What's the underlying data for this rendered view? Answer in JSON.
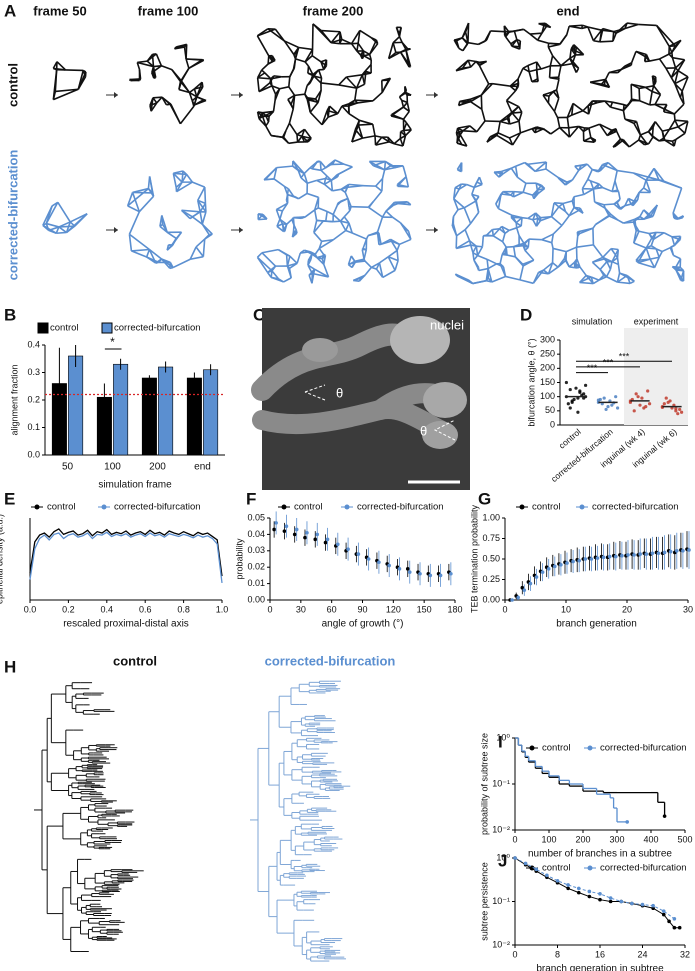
{
  "panel_A": {
    "label": "A",
    "columns": [
      "frame 50",
      "frame 100",
      "frame 200",
      "end"
    ],
    "rows": [
      "control",
      "corrected-bifurcation"
    ]
  },
  "panel_C": {
    "label": "C",
    "caption": "nuclei",
    "angle_symbol": "θ"
  },
  "panel_H": {
    "label": "H",
    "titles": [
      "control",
      "corrected-bifurcation"
    ]
  },
  "chart_data": [
    {
      "panel": "B",
      "type": "bar",
      "categories": [
        "50",
        "100",
        "200",
        "end"
      ],
      "series": [
        {
          "name": "control",
          "color": "#000000",
          "values": [
            0.26,
            0.21,
            0.28,
            0.28
          ],
          "errors": [
            0.13,
            0.05,
            0.01,
            0.02
          ]
        },
        {
          "name": "corrected-bifurcation",
          "color": "#5b8fd0",
          "values": [
            0.36,
            0.33,
            0.32,
            0.31
          ],
          "errors": [
            0.04,
            0.02,
            0.02,
            0.02
          ]
        }
      ],
      "reference_line": 0.22,
      "reference_color": "#d62728",
      "annotation": "*",
      "ylim": [
        0,
        0.4
      ],
      "yticks": [
        {
          "value": 0,
          "label": "0.0"
        },
        0.1,
        0.2,
        0.3,
        0.4
      ],
      "xlabel": "simulation frame",
      "ylabel": "alignment fraction"
    },
    {
      "panel": "D",
      "type": "strip",
      "categories": [
        "control",
        "corrected-bifurcation",
        "inguinal (wk 4)",
        "inguinal (wk 6)"
      ],
      "colors": [
        "#000000",
        "#4a7fc1",
        "#c0392b",
        "#c0392b"
      ],
      "values": [
        [
          100,
          120,
          85,
          140,
          95,
          60,
          110,
          130,
          75,
          105,
          90,
          150,
          115,
          80,
          100,
          45,
          125,
          95
        ],
        [
          80,
          70,
          95,
          60,
          85,
          75,
          100,
          65,
          90,
          78,
          55,
          88
        ],
        [
          85,
          60,
          110,
          75,
          95,
          50,
          120,
          70,
          90,
          65,
          100,
          80
        ],
        [
          65,
          50,
          80,
          45,
          70,
          95,
          55,
          60,
          75,
          40,
          85,
          62,
          58
        ]
      ],
      "means": [
        100,
        80,
        85,
        65
      ],
      "groups": [
        "simulation",
        "experiment"
      ],
      "annotations": [
        "***",
        "***",
        "***"
      ],
      "ylim": [
        0,
        300
      ],
      "yticks": [
        0,
        50,
        100,
        150,
        200,
        250,
        300
      ],
      "ylabel": "bifurcation angle, θ (°)"
    },
    {
      "panel": "E",
      "type": "line",
      "x": [
        0,
        0.025,
        0.05,
        0.075,
        0.1,
        0.125,
        0.15,
        0.175,
        0.2,
        0.225,
        0.25,
        0.275,
        0.3,
        0.325,
        0.35,
        0.375,
        0.4,
        0.425,
        0.45,
        0.475,
        0.5,
        0.525,
        0.55,
        0.575,
        0.6,
        0.625,
        0.65,
        0.675,
        0.7,
        0.725,
        0.75,
        0.775,
        0.8,
        0.825,
        0.85,
        0.875,
        0.9,
        0.925,
        0.95,
        0.975,
        1
      ],
      "series": [
        {
          "name": "control",
          "color": "#000000",
          "values": [
            40,
            85,
            95,
            98,
            92,
            100,
            104,
            96,
            99,
            101,
            95,
            97,
            102,
            94,
            100,
            98,
            103,
            96,
            99,
            97,
            101,
            95,
            98,
            100,
            96,
            102,
            97,
            99,
            95,
            101,
            98,
            96,
            100,
            97,
            94,
            99,
            96,
            98,
            93,
            88,
            35
          ]
        },
        {
          "name": "corrected-bifurcation",
          "color": "#5b8fd0",
          "values": [
            30,
            75,
            90,
            95,
            88,
            96,
            98,
            90,
            95,
            97,
            92,
            94,
            98,
            90,
            96,
            95,
            99,
            93,
            96,
            94,
            97,
            92,
            95,
            97,
            93,
            98,
            94,
            96,
            92,
            97,
            95,
            93,
            96,
            94,
            91,
            95,
            92,
            94,
            90,
            82,
            25
          ]
        }
      ],
      "xlim": [
        0,
        1
      ],
      "xticks": [
        {
          "value": 0,
          "label": "0.0"
        },
        0.2,
        0.4,
        0.6,
        0.8,
        {
          "value": 1,
          "label": "1.0"
        }
      ],
      "ylim": [
        0,
        120
      ],
      "xlabel": "rescaled proximal-distal axis",
      "ylabel": "epithelial density (a.u.)"
    },
    {
      "panel": "F",
      "type": "errorbar",
      "x": [
        5,
        15,
        25,
        35,
        45,
        55,
        65,
        75,
        85,
        95,
        105,
        115,
        125,
        135,
        145,
        155,
        165,
        175
      ],
      "series": [
        {
          "name": "control",
          "color": "#000000",
          "values": [
            0.043,
            0.042,
            0.04,
            0.038,
            0.037,
            0.035,
            0.033,
            0.03,
            0.028,
            0.026,
            0.024,
            0.022,
            0.02,
            0.019,
            0.017,
            0.016,
            0.016,
            0.017
          ],
          "errors": [
            0.005,
            0.005,
            0.005,
            0.005,
            0.005,
            0.005,
            0.005,
            0.005,
            0.005,
            0.005,
            0.005,
            0.005,
            0.005,
            0.005,
            0.005,
            0.005,
            0.005,
            0.005
          ]
        },
        {
          "name": "corrected-bifurcation",
          "color": "#5b8fd0",
          "values": [
            0.047,
            0.045,
            0.043,
            0.041,
            0.04,
            0.037,
            0.034,
            0.031,
            0.028,
            0.025,
            0.023,
            0.021,
            0.019,
            0.017,
            0.016,
            0.015,
            0.015,
            0.016
          ],
          "errors": [
            0.007,
            0.007,
            0.007,
            0.007,
            0.007,
            0.007,
            0.007,
            0.007,
            0.007,
            0.007,
            0.007,
            0.007,
            0.007,
            0.007,
            0.007,
            0.007,
            0.007,
            0.007
          ]
        }
      ],
      "xlim": [
        0,
        180
      ],
      "xticks": [
        0,
        30,
        60,
        90,
        120,
        150,
        180
      ],
      "ylim": [
        0,
        0.05
      ],
      "yticks": [
        {
          "value": 0,
          "label": "0.00"
        },
        {
          "value": 0.01,
          "label": "0.01"
        },
        {
          "value": 0.02,
          "label": "0.02"
        },
        {
          "value": 0.03,
          "label": "0.03"
        },
        {
          "value": 0.04,
          "label": "0.04"
        },
        {
          "value": 0.05,
          "label": "0.05"
        }
      ],
      "xlabel": "angle of growth (°)",
      "ylabel": "probability"
    },
    {
      "panel": "G",
      "type": "errorbar",
      "x": [
        1,
        2,
        3,
        4,
        5,
        6,
        7,
        8,
        9,
        10,
        11,
        12,
        13,
        14,
        15,
        16,
        17,
        18,
        19,
        20,
        21,
        22,
        23,
        24,
        25,
        26,
        27,
        28,
        29,
        30
      ],
      "series": [
        {
          "name": "control",
          "color": "#000000",
          "values": [
            0,
            0.05,
            0.15,
            0.22,
            0.3,
            0.35,
            0.4,
            0.42,
            0.44,
            0.46,
            0.48,
            0.49,
            0.5,
            0.51,
            0.52,
            0.53,
            0.52,
            0.54,
            0.55,
            0.54,
            0.56,
            0.55,
            0.57,
            0.56,
            0.58,
            0.57,
            0.6,
            0.58,
            0.61,
            0.62
          ],
          "errors": [
            0,
            0.04,
            0.08,
            0.1,
            0.11,
            0.12,
            0.12,
            0.13,
            0.13,
            0.14,
            0.14,
            0.15,
            0.15,
            0.15,
            0.16,
            0.16,
            0.16,
            0.17,
            0.17,
            0.17,
            0.18,
            0.18,
            0.18,
            0.19,
            0.19,
            0.2,
            0.2,
            0.21,
            0.21,
            0.22
          ]
        },
        {
          "name": "corrected-bifurcation",
          "color": "#5b8fd0",
          "values": [
            0,
            0.03,
            0.12,
            0.2,
            0.28,
            0.34,
            0.38,
            0.41,
            0.43,
            0.45,
            0.47,
            0.48,
            0.5,
            0.5,
            0.51,
            0.52,
            0.53,
            0.53,
            0.54,
            0.55,
            0.55,
            0.56,
            0.56,
            0.57,
            0.57,
            0.58,
            0.59,
            0.6,
            0.6,
            0.61
          ],
          "errors": [
            0,
            0.03,
            0.07,
            0.09,
            0.1,
            0.11,
            0.12,
            0.12,
            0.13,
            0.13,
            0.14,
            0.14,
            0.15,
            0.15,
            0.15,
            0.16,
            0.16,
            0.17,
            0.17,
            0.18,
            0.18,
            0.19,
            0.19,
            0.2,
            0.2,
            0.21,
            0.21,
            0.22,
            0.22,
            0.23
          ]
        }
      ],
      "xlim": [
        0,
        30
      ],
      "xticks": [
        0,
        10,
        20,
        30
      ],
      "ylim": [
        0,
        1
      ],
      "yticks": [
        {
          "value": 0,
          "label": "0.00"
        },
        {
          "value": 0.25,
          "label": "0.25"
        },
        {
          "value": 0.5,
          "label": "0.50"
        },
        {
          "value": 0.75,
          "label": "0.75"
        },
        {
          "value": 1,
          "label": "1.00"
        }
      ],
      "xlabel": "branch generation",
      "ylabel": "TEB termination probability"
    },
    {
      "panel": "I",
      "type": "step",
      "log_y": true,
      "series": [
        {
          "name": "control",
          "color": "#000000",
          "x": [
            0,
            10,
            20,
            30,
            40,
            60,
            80,
            100,
            130,
            160,
            200,
            260,
            300,
            400,
            420,
            440
          ],
          "values": [
            1,
            0.7,
            0.5,
            0.38,
            0.3,
            0.22,
            0.17,
            0.14,
            0.1,
            0.09,
            0.07,
            0.065,
            0.065,
            0.065,
            0.04,
            0.02
          ]
        },
        {
          "name": "corrected-bifurcation",
          "color": "#5b8fd0",
          "x": [
            0,
            10,
            20,
            30,
            40,
            60,
            80,
            100,
            130,
            160,
            200,
            240,
            280,
            290,
            300,
            330
          ],
          "values": [
            1,
            0.7,
            0.52,
            0.4,
            0.32,
            0.24,
            0.19,
            0.15,
            0.12,
            0.1,
            0.08,
            0.06,
            0.05,
            0.03,
            0.015,
            0.015
          ]
        }
      ],
      "xlim": [
        0,
        500
      ],
      "xticks": [
        0,
        100,
        200,
        300,
        400,
        500
      ],
      "ylim": [
        0.01,
        1
      ],
      "yticks": [
        {
          "value": 1,
          "label": "10⁰"
        },
        {
          "value": 0.1,
          "label": "10⁻¹"
        },
        {
          "value": 0.01,
          "label": "10⁻²"
        }
      ],
      "xlabel": "number of branches in a subtree",
      "ylabel": "probability of subtree size"
    },
    {
      "panel": "J",
      "type": "line",
      "log_y": true,
      "series": [
        {
          "name": "control",
          "color": "#000000",
          "x": [
            0,
            2,
            4,
            6,
            8,
            10,
            12,
            14,
            16,
            18,
            20,
            22,
            24,
            26,
            28,
            29,
            30,
            31
          ],
          "values": [
            1,
            0.7,
            0.5,
            0.36,
            0.27,
            0.2,
            0.16,
            0.13,
            0.11,
            0.1,
            0.1,
            0.09,
            0.08,
            0.07,
            0.05,
            0.035,
            0.025,
            0.025
          ]
        },
        {
          "name": "corrected-bifurcation",
          "color": "#5b8fd0",
          "x": [
            0,
            2,
            4,
            6,
            8,
            10,
            12,
            14,
            16,
            18,
            20,
            22,
            24,
            26,
            28,
            30
          ],
          "values": [
            1,
            0.75,
            0.55,
            0.4,
            0.3,
            0.24,
            0.2,
            0.17,
            0.15,
            0.12,
            0.1,
            0.09,
            0.085,
            0.08,
            0.06,
            0.04
          ]
        }
      ],
      "xlim": [
        0,
        32
      ],
      "xticks": [
        0,
        8,
        16,
        24,
        32
      ],
      "ylim": [
        0.01,
        1
      ],
      "yticks": [
        {
          "value": 1,
          "label": "10⁰"
        },
        {
          "value": 0.1,
          "label": "10⁻¹"
        },
        {
          "value": 0.01,
          "label": "10⁻²"
        }
      ],
      "xlabel": "branch generation in subtree",
      "ylabel": "subtree persistence"
    }
  ]
}
